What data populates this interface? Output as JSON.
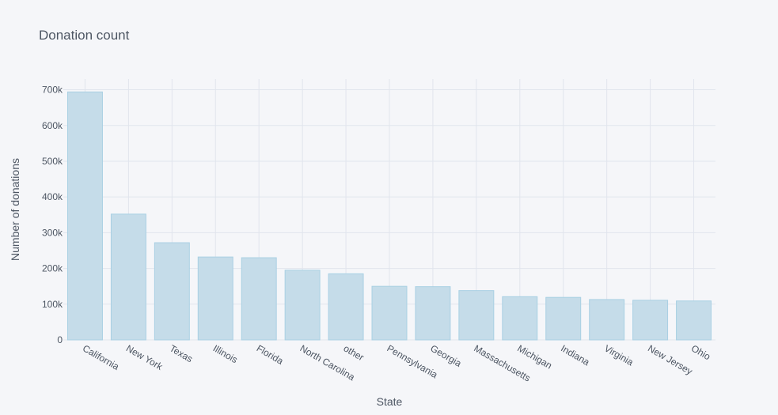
{
  "chart_data": {
    "type": "bar",
    "title": "Donation count",
    "xlabel": "State",
    "ylabel": "Number of donations",
    "categories": [
      "California",
      "New York",
      "Texas",
      "Illinois",
      "Florida",
      "North Carolina",
      "other",
      "Pennsylvania",
      "Georgia",
      "Massachusetts",
      "Michigan",
      "Indiana",
      "Virginia",
      "New Jersey",
      "Ohio"
    ],
    "values": [
      694000,
      352000,
      272000,
      232000,
      230000,
      195000,
      185000,
      150000,
      149000,
      138000,
      121000,
      119000,
      113000,
      111000,
      109000
    ],
    "ylim": [
      0,
      730000
    ],
    "yticks": [
      0,
      100000,
      200000,
      300000,
      400000,
      500000,
      600000,
      700000
    ],
    "ytick_labels": [
      "0",
      "100k",
      "200k",
      "300k",
      "400k",
      "500k",
      "600k",
      "700k"
    ],
    "grid": true,
    "bar_color": "#c5dce9",
    "bar_edge_color": "#a9d0e3",
    "background_color": "#f5f6f9",
    "grid_color": "#e1e5ed"
  }
}
